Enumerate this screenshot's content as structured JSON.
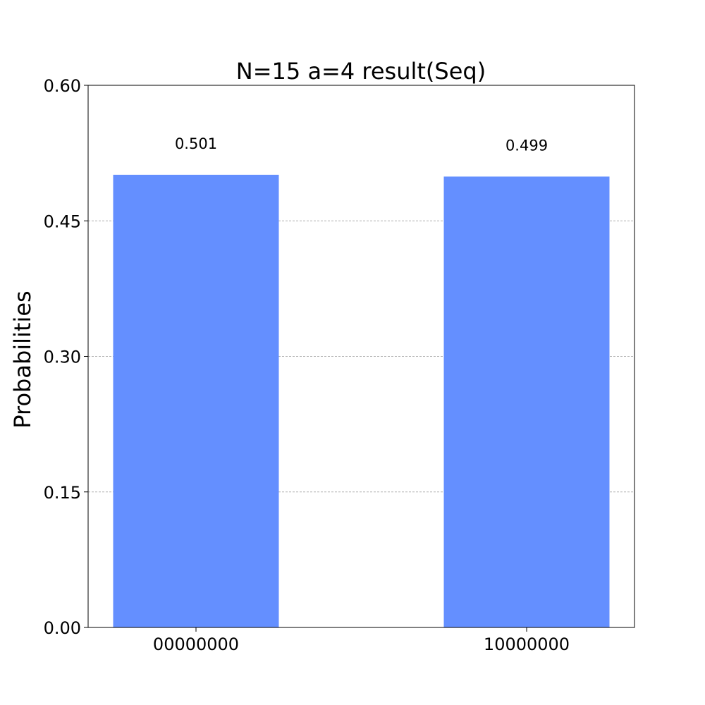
{
  "chart_data": {
    "type": "bar",
    "title": "N=15 a=4 result(Seq)",
    "xlabel": "",
    "ylabel": "Probabilities",
    "categories": [
      "00000000",
      "10000000"
    ],
    "values": [
      0.501,
      0.499
    ],
    "value_labels": [
      "0.501",
      "0.499"
    ],
    "ylim": [
      0,
      0.6
    ],
    "yticks": [
      0,
      0.15,
      0.3,
      0.45,
      0.6
    ],
    "ytick_labels": [
      "0.00",
      "0.15",
      "0.30",
      "0.45",
      "0.60"
    ],
    "grid": "horizontal dashed",
    "bar_color": "#648fff"
  }
}
